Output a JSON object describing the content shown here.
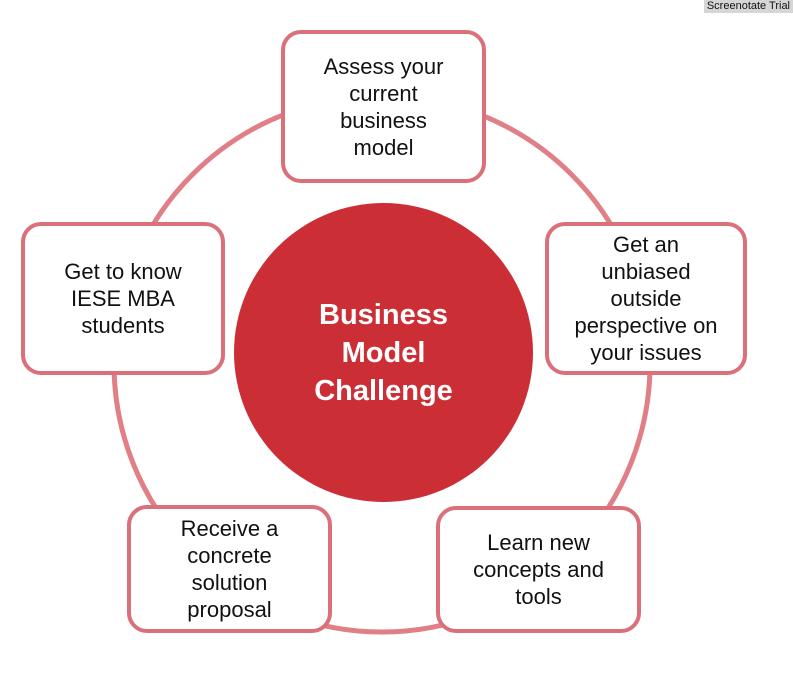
{
  "watermark": "Screenotate Trial",
  "hub": {
    "label": "Business\nModel\nChallenge"
  },
  "steps": [
    {
      "label": "Assess your\ncurrent\nbusiness\nmodel"
    },
    {
      "label": "Get an\nunbiased\noutside\nperspective on\nyour issues"
    },
    {
      "label": "Learn new\nconcepts and\ntools"
    },
    {
      "label": "Receive a\nconcrete\nsolution\nproposal"
    },
    {
      "label": "Get to know\nIESE MBA\nstudents"
    }
  ],
  "colors": {
    "hub_fill": "#cc2e35",
    "ring_stroke": "#e07f86",
    "box_border": "#d9707a",
    "text": "#111111"
  }
}
